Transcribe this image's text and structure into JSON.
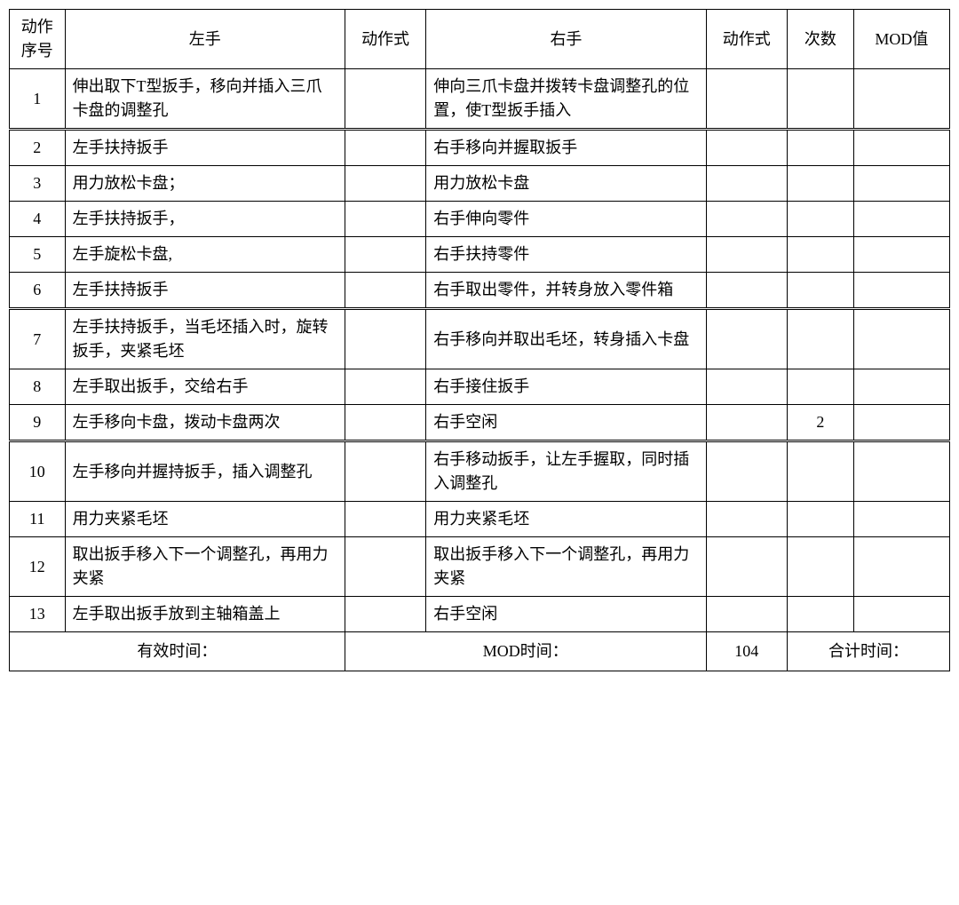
{
  "headers": {
    "seq": "动作\n序号",
    "left": "左手",
    "act1": "动作式",
    "right": "右手",
    "act2": "动作式",
    "count": "次数",
    "mod": "MOD值"
  },
  "rows": [
    {
      "seq": "1",
      "left": "伸出取下T型扳手，移向并插入三爪卡盘的调整孔",
      "act1": "",
      "right": "伸向三爪卡盘并拨转卡盘调整孔的位置，使T型扳手插入",
      "act2": "",
      "count": "",
      "mod": "",
      "dbl": true
    },
    {
      "seq": "2",
      "left": "左手扶持扳手",
      "act1": "",
      "right": "右手移向并握取扳手",
      "act2": "",
      "count": "",
      "mod": ""
    },
    {
      "seq": "3",
      "left": "用力放松卡盘；",
      "act1": "",
      "right": "用力放松卡盘",
      "act2": "",
      "count": "",
      "mod": ""
    },
    {
      "seq": "4",
      "left": "左手扶持扳手，",
      "act1": "",
      "right": "右手伸向零件",
      "act2": "",
      "count": "",
      "mod": ""
    },
    {
      "seq": "5",
      "left": "左手旋松卡盘,",
      "act1": "",
      "right": "右手扶持零件",
      "act2": "",
      "count": "",
      "mod": ""
    },
    {
      "seq": "6",
      "left": "左手扶持扳手",
      "act1": "",
      "right": "右手取出零件，并转身放入零件箱",
      "act2": "",
      "count": "",
      "mod": "",
      "dbl": true
    },
    {
      "seq": "7",
      "left": "左手扶持扳手，当毛坯插入时，旋转扳手，夹紧毛坯",
      "act1": "",
      "right": "右手移向并取出毛坯，转身插入卡盘",
      "act2": "",
      "count": "",
      "mod": ""
    },
    {
      "seq": "8",
      "left": "左手取出扳手，交给右手",
      "act1": "",
      "right": "右手接住扳手",
      "act2": "",
      "count": "",
      "mod": ""
    },
    {
      "seq": "9",
      "left": "左手移向卡盘，拨动卡盘两次",
      "act1": "",
      "right": "右手空闲",
      "act2": "",
      "count": "2",
      "mod": "",
      "dbl": true
    },
    {
      "seq": "10",
      "left": "左手移向并握持扳手，插入调整孔",
      "act1": "",
      "right": "右手移动扳手，让左手握取，同时插入调整孔",
      "act2": "",
      "count": "",
      "mod": ""
    },
    {
      "seq": "11",
      "left": "用力夹紧毛坯",
      "act1": "",
      "right": "用力夹紧毛坯",
      "act2": "",
      "count": "",
      "mod": ""
    },
    {
      "seq": "12",
      "left": "取出扳手移入下一个调整孔，再用力夹紧",
      "act1": "",
      "right": "取出扳手移入下一个调整孔，再用力夹紧",
      "act2": "",
      "count": "",
      "mod": ""
    },
    {
      "seq": "13",
      "left": "左手取出扳手放到主轴箱盖上",
      "act1": "",
      "right": "右手空闲",
      "act2": "",
      "count": "",
      "mod": ""
    }
  ],
  "footer": {
    "effective_time_label": "有效时间：",
    "mod_time_label": "MOD时间：",
    "mod_time_value": "104",
    "total_time_label": "合计时间："
  }
}
